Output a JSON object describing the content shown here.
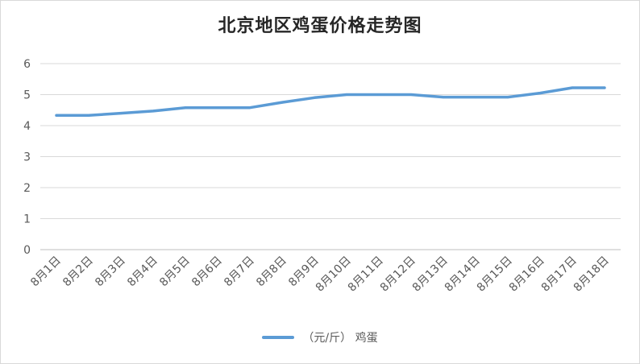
{
  "chart_data": {
    "type": "line",
    "title": "北京地区鸡蛋价格走势图",
    "categories": [
      "8月1日",
      "8月2日",
      "8月3日",
      "8月4日",
      "8月5日",
      "8月6日",
      "8月7日",
      "8月8日",
      "8月9日",
      "8月10日",
      "8月11日",
      "8月12日",
      "8月13日",
      "8月14日",
      "8月15日",
      "8月16日",
      "8月17日",
      "8月18日"
    ],
    "series": [
      {
        "name": "（元/斤） 鸡蛋",
        "values": [
          4.33,
          4.33,
          4.4,
          4.47,
          4.58,
          4.58,
          4.58,
          4.75,
          4.9,
          5.0,
          5.0,
          5.0,
          4.92,
          4.92,
          4.92,
          5.05,
          5.22,
          5.22
        ],
        "color": "#5b9bd5"
      }
    ],
    "yticks": [
      0,
      1,
      2,
      3,
      4,
      5,
      6
    ],
    "ylim": [
      0,
      6
    ],
    "grid": true,
    "legend": "bottom"
  }
}
